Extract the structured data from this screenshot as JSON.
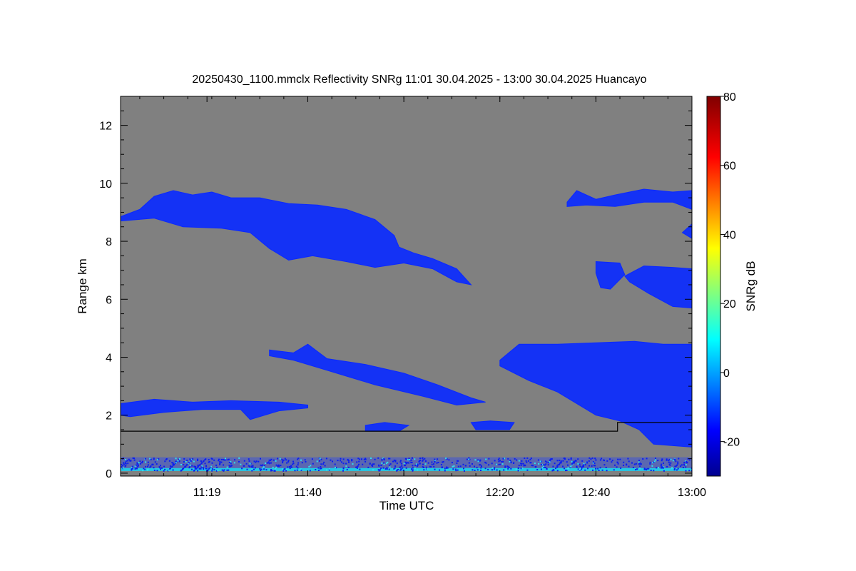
{
  "chart_data": {
    "type": "heatmap",
    "title": "20250430_1100.mmclx Reflectivity SNRg   11:01 30.04.2025 - 13:00 30.04.2025 Huancayo",
    "xlabel": "Time UTC",
    "ylabel": "Range km",
    "colorbar_label": "SNRg dB",
    "x_range_minutes_utc": [
      661,
      780
    ],
    "x_ticks": [
      {
        "minute": 679,
        "label": "11:19"
      },
      {
        "minute": 700,
        "label": "11:40"
      },
      {
        "minute": 720,
        "label": "12:00"
      },
      {
        "minute": 740,
        "label": "12:20"
      },
      {
        "minute": 760,
        "label": "12:40"
      },
      {
        "minute": 780,
        "label": "13:00"
      }
    ],
    "y_range_km": [
      -0.1,
      13
    ],
    "y_ticks": [
      0,
      2,
      4,
      6,
      8,
      10,
      12
    ],
    "colorbar_range_db": [
      -30,
      80
    ],
    "colorbar_ticks": [
      -20,
      0,
      20,
      40,
      60,
      80
    ],
    "colormap": [
      "#00008f",
      "#0000ff",
      "#00ffff",
      "#ffff00",
      "#ff0000",
      "#800000"
    ],
    "background_color": "#808080",
    "echo_color": "#1432f5",
    "grid": false,
    "boundary_line": [
      {
        "time_min": 661,
        "range_km": 1.45
      },
      {
        "time_min": 764.5,
        "range_km": 1.45
      },
      {
        "time_min": 764.5,
        "range_km": 1.75
      },
      {
        "time_min": 780,
        "range_km": 1.75
      }
    ],
    "echo_regions": [
      {
        "name": "upper-cloud-layer",
        "points": [
          [
            661,
            8.85
          ],
          [
            665,
            9.1
          ],
          [
            668,
            9.55
          ],
          [
            672,
            9.75
          ],
          [
            676,
            9.6
          ],
          [
            680,
            9.7
          ],
          [
            684,
            9.5
          ],
          [
            690,
            9.5
          ],
          [
            696,
            9.3
          ],
          [
            702,
            9.25
          ],
          [
            708,
            9.1
          ],
          [
            714,
            8.75
          ],
          [
            718,
            8.2
          ],
          [
            719,
            7.8
          ],
          [
            722,
            7.6
          ],
          [
            726,
            7.4
          ],
          [
            731,
            7.05
          ],
          [
            734,
            6.5
          ],
          [
            731,
            6.6
          ],
          [
            726,
            7.05
          ],
          [
            720,
            7.25
          ],
          [
            714,
            7.1
          ],
          [
            708,
            7.3
          ],
          [
            701,
            7.5
          ],
          [
            696,
            7.35
          ],
          [
            692,
            7.75
          ],
          [
            688,
            8.3
          ],
          [
            682,
            8.45
          ],
          [
            674,
            8.5
          ],
          [
            668,
            8.8
          ],
          [
            661,
            8.7
          ]
        ]
      },
      {
        "name": "upper-right-patch",
        "points": [
          [
            754,
            9.35
          ],
          [
            756,
            9.75
          ],
          [
            760,
            9.45
          ],
          [
            764,
            9.6
          ],
          [
            770,
            9.8
          ],
          [
            776,
            9.7
          ],
          [
            780,
            9.75
          ],
          [
            780,
            9.1
          ],
          [
            776,
            9.35
          ],
          [
            770,
            9.35
          ],
          [
            764,
            9.2
          ],
          [
            758,
            9.25
          ],
          [
            754,
            9.2
          ]
        ]
      },
      {
        "name": "mid-right-layer-a",
        "points": [
          [
            760,
            7.3
          ],
          [
            765,
            7.25
          ],
          [
            766,
            6.85
          ],
          [
            763,
            6.35
          ],
          [
            761,
            6.4
          ],
          [
            760,
            6.9
          ]
        ]
      },
      {
        "name": "mid-right-layer-b",
        "points": [
          [
            766,
            6.8
          ],
          [
            770,
            7.15
          ],
          [
            776,
            7.1
          ],
          [
            780,
            7.05
          ],
          [
            780,
            5.7
          ],
          [
            776,
            5.75
          ],
          [
            771,
            6.2
          ],
          [
            767,
            6.6
          ]
        ]
      },
      {
        "name": "mid-level-streak",
        "points": [
          [
            692,
            4.25
          ],
          [
            697,
            4.15
          ],
          [
            700,
            4.45
          ],
          [
            704,
            3.95
          ],
          [
            712,
            3.75
          ],
          [
            720,
            3.45
          ],
          [
            727,
            3.05
          ],
          [
            734,
            2.6
          ],
          [
            737,
            2.45
          ],
          [
            731,
            2.35
          ],
          [
            724,
            2.65
          ],
          [
            714,
            3.05
          ],
          [
            704,
            3.55
          ],
          [
            697,
            3.9
          ],
          [
            692,
            4.05
          ]
        ]
      },
      {
        "name": "lower-right-fallstreak",
        "points": [
          [
            740,
            3.9
          ],
          [
            744,
            4.45
          ],
          [
            752,
            4.45
          ],
          [
            760,
            4.5
          ],
          [
            768,
            4.55
          ],
          [
            774,
            4.45
          ],
          [
            780,
            4.45
          ],
          [
            780,
            0.9
          ],
          [
            776,
            0.95
          ],
          [
            772,
            1.0
          ],
          [
            769,
            1.5
          ],
          [
            765,
            1.8
          ],
          [
            760,
            2.0
          ],
          [
            756,
            2.4
          ],
          [
            752,
            2.8
          ],
          [
            746,
            3.2
          ],
          [
            740,
            3.7
          ]
        ]
      },
      {
        "name": "low-layer-left",
        "points": [
          [
            661,
            2.4
          ],
          [
            668,
            2.55
          ],
          [
            676,
            2.45
          ],
          [
            684,
            2.5
          ],
          [
            694,
            2.45
          ],
          [
            700,
            2.35
          ],
          [
            700,
            2.25
          ],
          [
            694,
            2.15
          ],
          [
            688,
            1.85
          ],
          [
            686,
            2.2
          ],
          [
            678,
            2.2
          ],
          [
            670,
            2.1
          ],
          [
            663,
            1.95
          ],
          [
            661,
            2.0
          ]
        ]
      },
      {
        "name": "low-patch-a",
        "points": [
          [
            712,
            1.65
          ],
          [
            716,
            1.75
          ],
          [
            721,
            1.65
          ],
          [
            719,
            1.45
          ],
          [
            712,
            1.45
          ]
        ]
      },
      {
        "name": "low-patch-b",
        "points": [
          [
            734,
            1.75
          ],
          [
            738,
            1.8
          ],
          [
            743,
            1.75
          ],
          [
            742,
            1.5
          ],
          [
            735,
            1.5
          ]
        ]
      },
      {
        "name": "small-upper-patch",
        "points": [
          [
            780,
            8.6
          ],
          [
            778,
            8.3
          ],
          [
            780,
            8.1
          ]
        ]
      }
    ],
    "ground_clutter_band_km": [
      0.1,
      0.55
    ]
  }
}
